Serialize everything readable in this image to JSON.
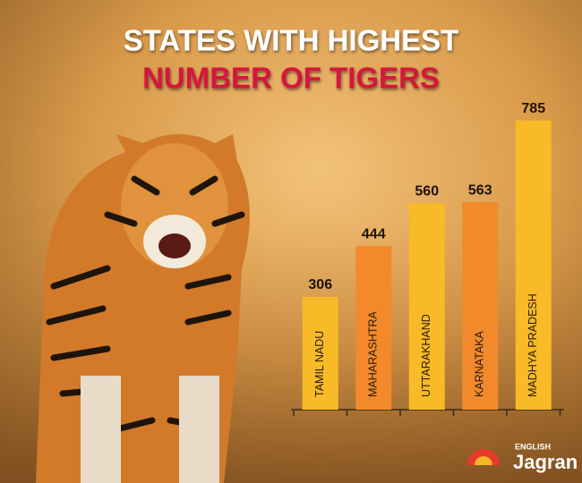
{
  "chart_data": {
    "type": "bar",
    "title_lines": [
      "STATES WITH HIGHEST",
      "NUMBER OF TIGERS"
    ],
    "title_colors": [
      "#ffffff",
      "#d5173d"
    ],
    "categories": [
      "TAMIL NADU",
      "MAHARASHTRA",
      "UTTARAKHAND",
      "KARNATAKA",
      "MADHYA PRADESH"
    ],
    "values": [
      306,
      444,
      560,
      563,
      785
    ],
    "colors": [
      "#f8ba27",
      "#f28a2c",
      "#f8ba27",
      "#f28a2c",
      "#f8ba27"
    ]
  },
  "logo": {
    "small": "ENGLISH",
    "name": "Jagran"
  }
}
